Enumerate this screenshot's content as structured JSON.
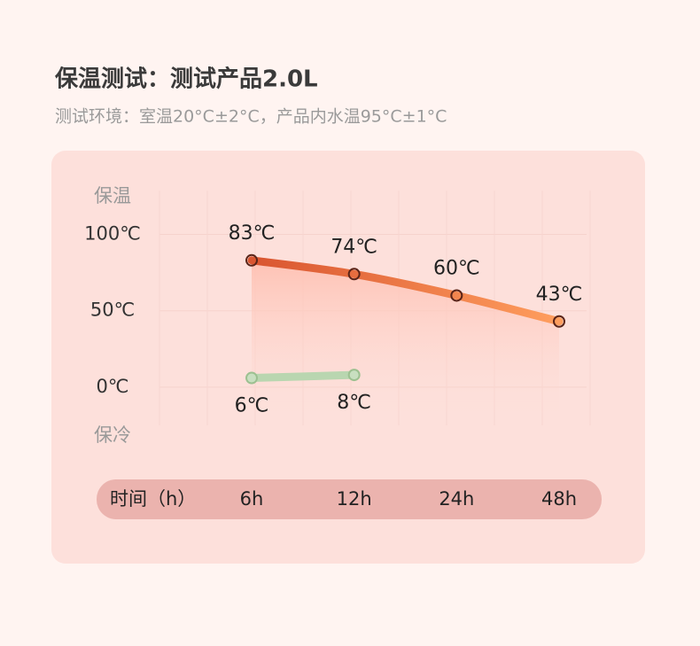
{
  "chart_data": {
    "type": "line",
    "title": "保温测试：测试产品2.0L",
    "subtitle": "测试环境：室温20°C±2°C，产品内水温95°C±1°C",
    "top_label": "保温",
    "bottom_label": "保冷",
    "x_label": "时间（h）",
    "categories": [
      "6h",
      "12h",
      "24h",
      "48h"
    ],
    "ylim": [
      -25,
      120
    ],
    "yticks": [
      {
        "value": 100,
        "label": "100℃"
      },
      {
        "value": 50,
        "label": "50℃"
      },
      {
        "value": 0,
        "label": "0℃"
      }
    ],
    "grid": true,
    "series": [
      {
        "name": "保温",
        "color": "#f07840",
        "values": [
          83,
          74,
          60,
          43
        ],
        "value_labels": [
          "83℃",
          "74℃",
          "60℃",
          "43℃"
        ]
      },
      {
        "name": "保冷",
        "color": "#b9d6b0",
        "values": [
          6,
          8,
          null,
          null
        ],
        "value_labels": [
          "6℃",
          "8℃",
          null,
          null
        ]
      }
    ]
  }
}
